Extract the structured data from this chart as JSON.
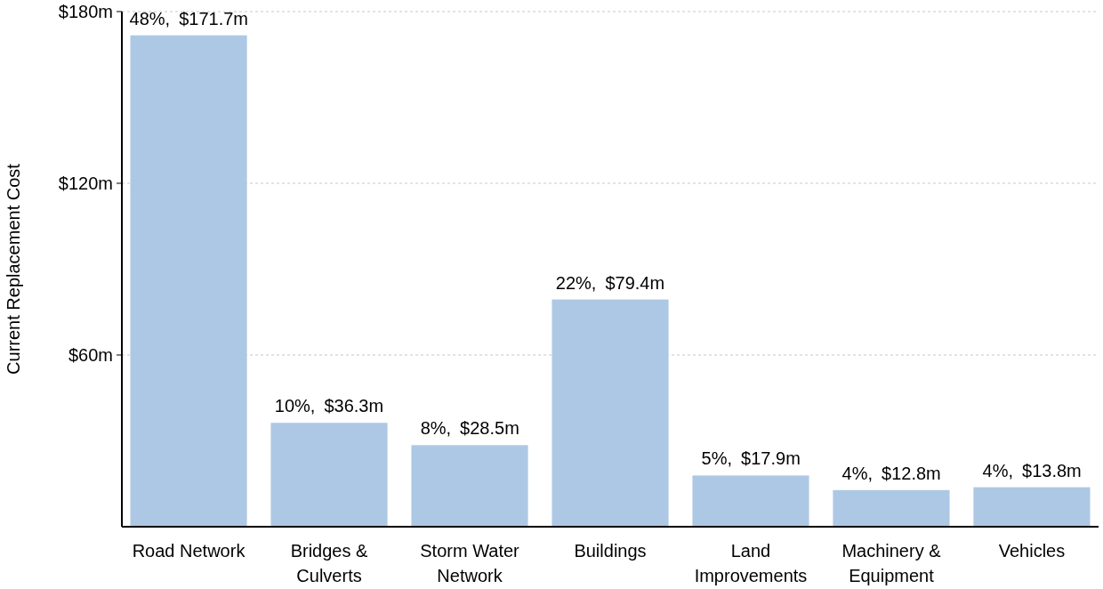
{
  "chart_data": {
    "type": "bar",
    "ylabel": "Current Replacement Cost",
    "categories": [
      "Road Network",
      "Bridges & Culverts",
      "Storm Water Network",
      "Buildings",
      "Land Improvements",
      "Machinery & Equipment",
      "Vehicles"
    ],
    "values": [
      171.7,
      36.3,
      28.5,
      79.4,
      17.9,
      12.8,
      13.8
    ],
    "value_labels": [
      "$171.7m",
      "$36.3m",
      "$28.5m",
      "$79.4m",
      "$17.9m",
      "$12.8m",
      "$13.8m"
    ],
    "annotations": [
      {
        "text": "48%,",
        "x": "Road Network",
        "y": 171.7
      },
      {
        "text": "10%,",
        "x": "Bridges & Culverts",
        "y": 36.3
      },
      {
        "text": "8%,",
        "x": "Storm Water Network",
        "y": 28.5
      },
      {
        "text": "22%,",
        "x": "Buildings",
        "y": 79.4
      },
      {
        "text": "5%,",
        "x": "Land Improvements",
        "y": 17.9
      },
      {
        "text": "4%,",
        "x": "Machinery & Equipment",
        "y": 12.8
      },
      {
        "text": "4%,",
        "x": "Vehicles",
        "y": 13.8
      }
    ],
    "color": "#adc8e4",
    "ylim": [
      0,
      180
    ],
    "yticks": [
      {
        "value": 60,
        "label": "$60m"
      },
      {
        "value": 120,
        "label": "$120m"
      },
      {
        "value": 180,
        "label": "$180m"
      }
    ],
    "grid": "y"
  }
}
